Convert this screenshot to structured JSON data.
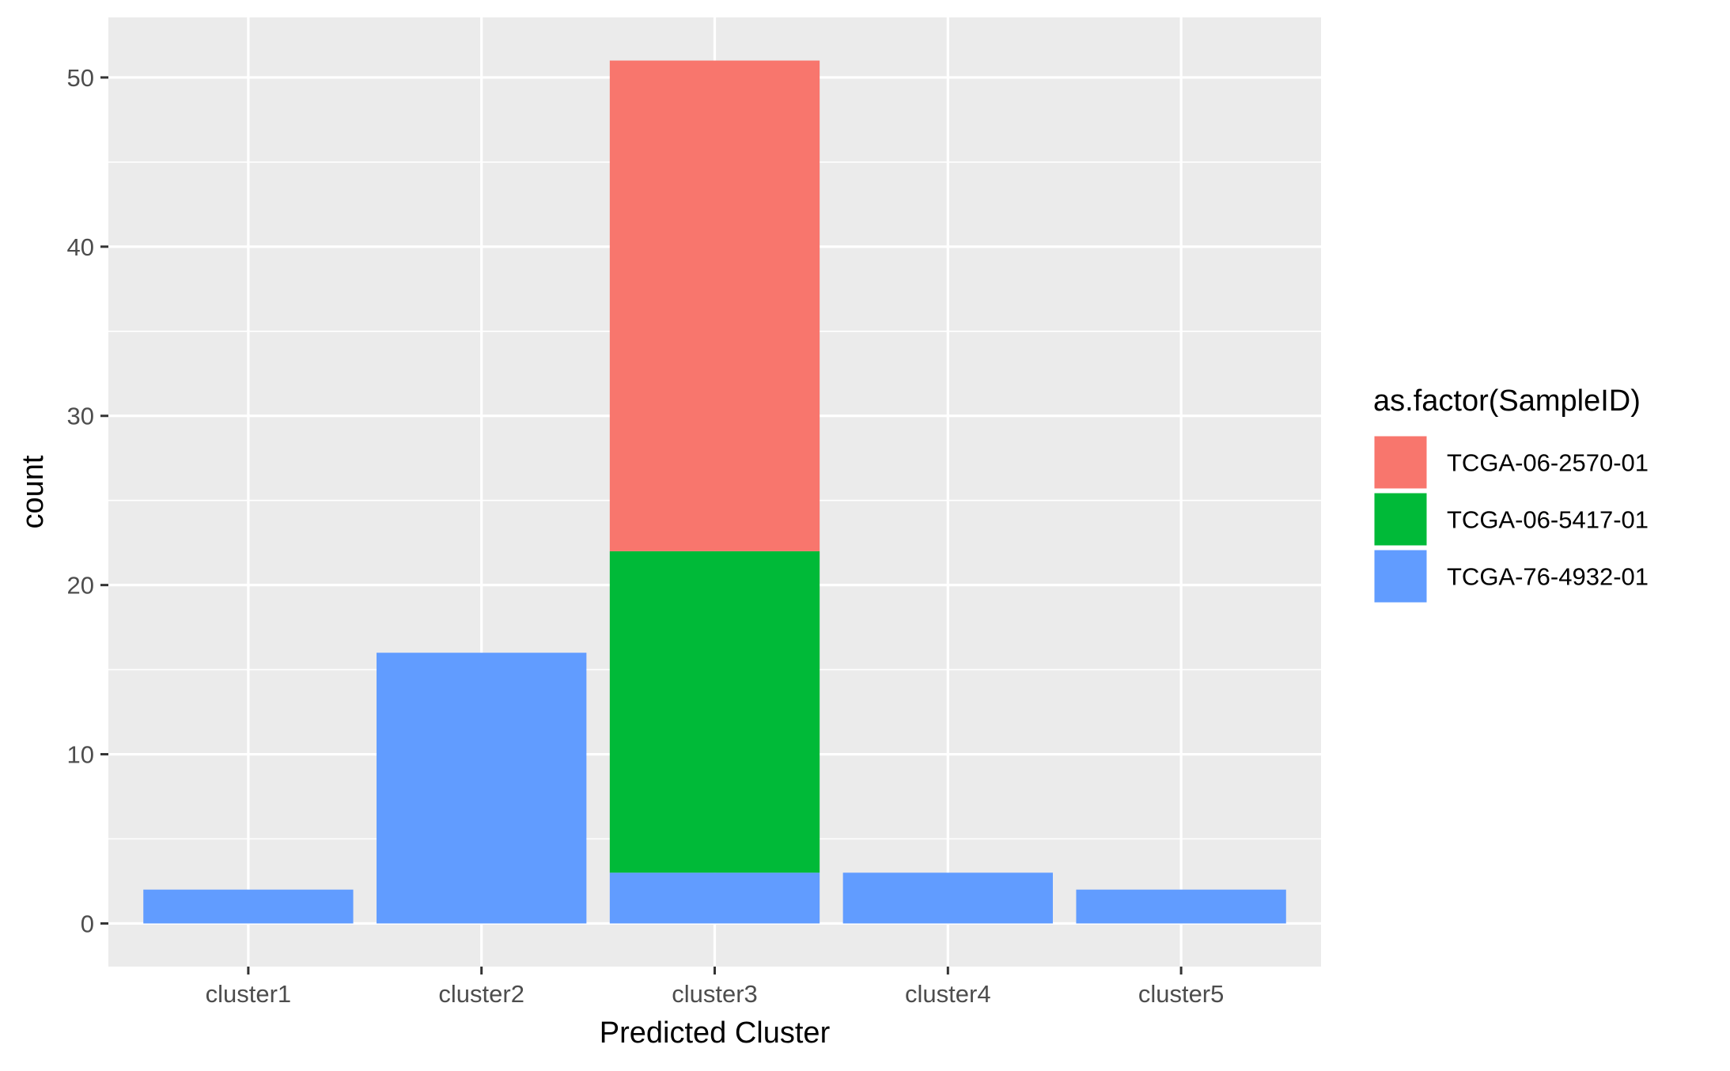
{
  "chart_data": {
    "type": "bar",
    "stacked": true,
    "categories": [
      "cluster1",
      "cluster2",
      "cluster3",
      "cluster4",
      "cluster5"
    ],
    "series": [
      {
        "name": "TCGA-06-2570-01",
        "color": "#F8766D",
        "values": [
          0,
          0,
          29,
          0,
          0
        ]
      },
      {
        "name": "TCGA-06-5417-01",
        "color": "#00BA38",
        "values": [
          0,
          0,
          19,
          0,
          0
        ]
      },
      {
        "name": "TCGA-76-4932-01",
        "color": "#619CFF",
        "values": [
          2,
          16,
          3,
          3,
          2
        ]
      }
    ],
    "xlabel": "Predicted Cluster",
    "ylabel": "count",
    "ylim": [
      -2.55,
      53.55
    ],
    "yticks": [
      0,
      10,
      20,
      30,
      40,
      50
    ],
    "grid": true,
    "legend": {
      "title": "as.factor(SampleID)",
      "position": "right"
    },
    "colors": {
      "panel_background": "#EBEBEB",
      "grid_line": "#FFFFFF",
      "tick_text": "#4D4D4D",
      "title_text": "#000000"
    }
  }
}
